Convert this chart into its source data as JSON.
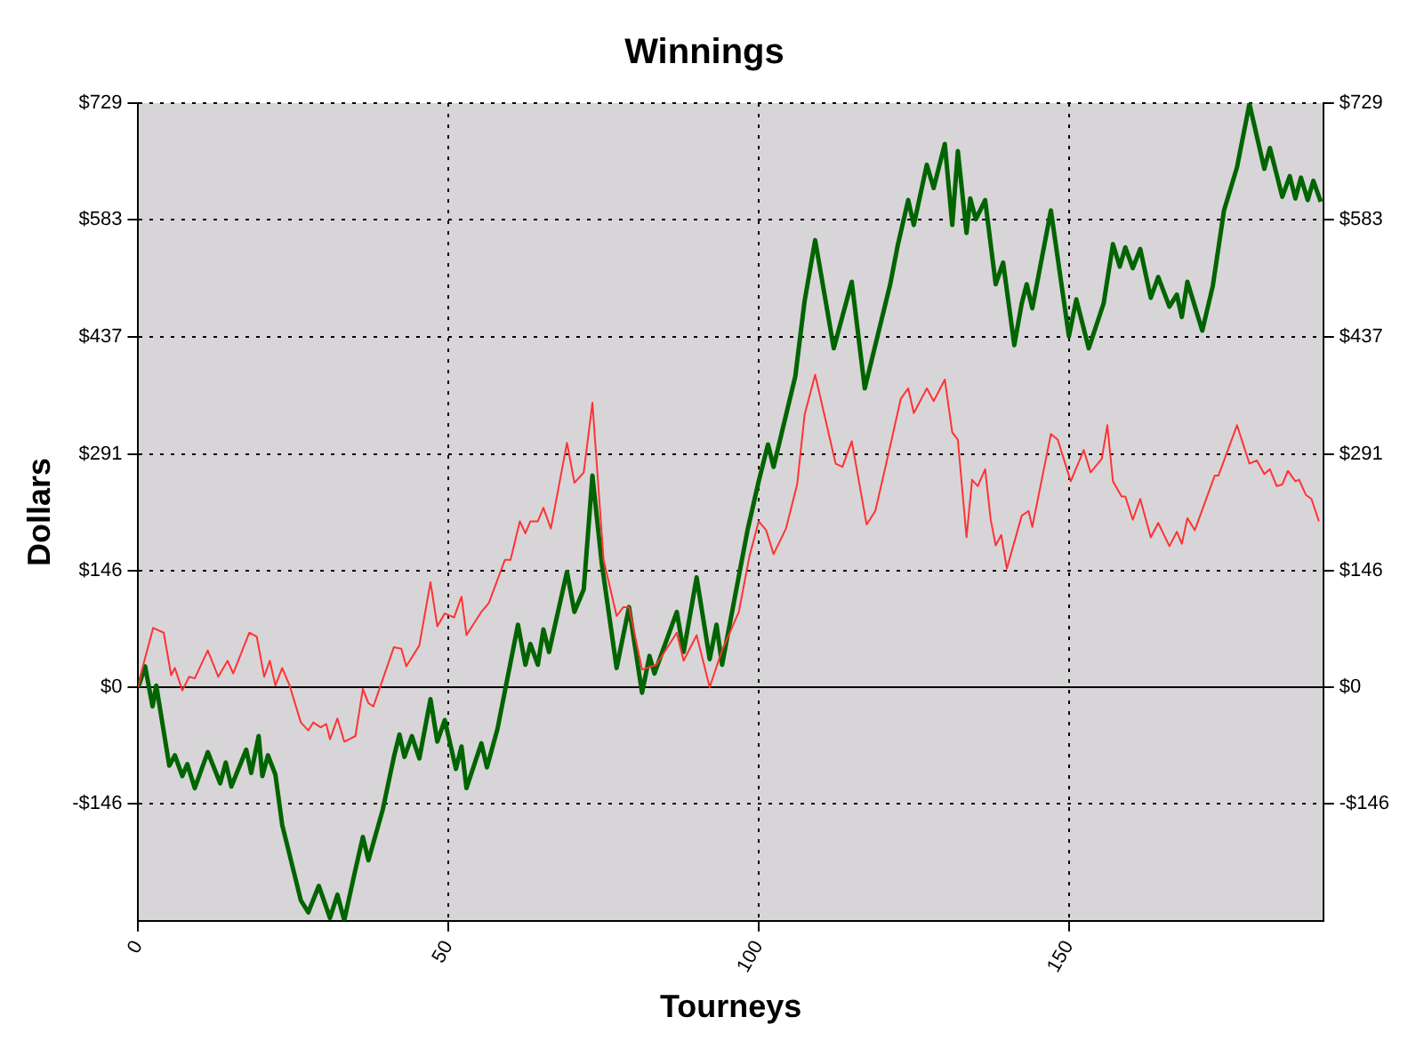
{
  "chart_data": {
    "type": "line",
    "title": "Winnings",
    "xlabel": "Tourneys",
    "ylabel": "Dollars",
    "xlim": [
      0,
      191
    ],
    "xticks": [
      0,
      50,
      100,
      150
    ],
    "ylim": [
      -291.6,
      729
    ],
    "yticks": [
      {
        "value": -145.8,
        "label": "-$146"
      },
      {
        "value": 0,
        "label": "$0"
      },
      {
        "value": 145.8,
        "label": "$146"
      },
      {
        "value": 291,
        "label": "$291"
      },
      {
        "value": 437.4,
        "label": "$437"
      },
      {
        "value": 583.2,
        "label": "$583"
      },
      {
        "value": 729,
        "label": "$729"
      }
    ],
    "y2lim": [
      -291.6,
      729
    ],
    "y2ticks": [
      {
        "value": -145.8,
        "label": "-$146"
      },
      {
        "value": 0,
        "label": "$0"
      },
      {
        "value": 145.8,
        "label": "$146"
      },
      {
        "value": 291,
        "label": "$291"
      },
      {
        "value": 437.4,
        "label": "$437"
      },
      {
        "value": 583.2,
        "label": "$583"
      },
      {
        "value": 729,
        "label": "$729"
      }
    ],
    "grid": true,
    "marker": "none",
    "line_style": "solid",
    "ref_lines": [
      {
        "axis": "y",
        "value": 0,
        "color": "#000000"
      }
    ],
    "series": [
      {
        "color": "#ff3333",
        "x": [
          0,
          0.6,
          2.4,
          4.1,
          5.3,
          5.9,
          7.1,
          8.2,
          9.1,
          11.2,
          12.9,
          14.4,
          15.3,
          17.9,
          19.1,
          20.3,
          21.2,
          22.1,
          23.2,
          24.4,
          26.2,
          27.4,
          28.2,
          29.4,
          30.3,
          30.9,
          32.1,
          33.2,
          35,
          36.2,
          37.1,
          37.9,
          41.2,
          42.4,
          43.2,
          45.3,
          47.1,
          48.2,
          49.4,
          50.9,
          52.1,
          52.9,
          55.3,
          56.5,
          59.1,
          60,
          61.5,
          62.4,
          63.2,
          64.4,
          65.3,
          66.5,
          69.1,
          70.3,
          71.8,
          73.2,
          75,
          77.1,
          78.2,
          79.1,
          81.2,
          83.5,
          86.8,
          87.9,
          90,
          92.1,
          94.1,
          96.8,
          98.5,
          100,
          101.2,
          102.4,
          104.4,
          106.2,
          107.4,
          109.1,
          112.4,
          113.5,
          115,
          117.4,
          118.8,
          121.2,
          122.9,
          124.1,
          125,
          127.1,
          128.2,
          130,
          131.2,
          132.1,
          133.5,
          134.4,
          135.3,
          136.5,
          137.4,
          138.2,
          139.1,
          140,
          142.4,
          143.5,
          144.1,
          147.1,
          148.2,
          150.3,
          152.4,
          153.5,
          155.3,
          156.2,
          157.1,
          158.5,
          159.1,
          160.3,
          161.5,
          163.2,
          164.4,
          166.2,
          167.4,
          168.2,
          169.1,
          170.3,
          173.5,
          174.1,
          177.1,
          179.1,
          180.3,
          181.5,
          182.4,
          183.5,
          184.4,
          185.3,
          186.5,
          187.1,
          188.2,
          189.1,
          190.3
        ],
        "values": [
          0,
          22,
          74,
          68,
          15,
          24,
          -4,
          13,
          11,
          46,
          13,
          33,
          17,
          68,
          63,
          13,
          33,
          2,
          24,
          2,
          -44,
          -54,
          -44,
          -50,
          -46,
          -65,
          -39,
          -68,
          -61,
          -2,
          -20,
          -24,
          50,
          48,
          26,
          52,
          131,
          76,
          92,
          87,
          113,
          65,
          94,
          105,
          159,
          159,
          207,
          192,
          207,
          207,
          224,
          198,
          305,
          255,
          268,
          355,
          159,
          89,
          100,
          100,
          22,
          28,
          68,
          33,
          65,
          0,
          46,
          94,
          163,
          207,
          196,
          166,
          198,
          253,
          340,
          390,
          279,
          275,
          307,
          203,
          220,
          301,
          360,
          373,
          342,
          373,
          357,
          384,
          318,
          309,
          187,
          259,
          251,
          272,
          209,
          177,
          190,
          148,
          214,
          220,
          200,
          316,
          309,
          257,
          296,
          268,
          285,
          327,
          257,
          238,
          238,
          209,
          235,
          187,
          205,
          176,
          194,
          179,
          211,
          196,
          264,
          264,
          327,
          279,
          283,
          266,
          272,
          251,
          253,
          270,
          257,
          259,
          240,
          235,
          207
        ]
      },
      {
        "color": "#006400",
        "x": [
          0,
          1.1,
          2.3,
          2.9,
          5,
          5.9,
          7.1,
          7.9,
          9.1,
          11.2,
          13.2,
          14.1,
          15,
          17.4,
          18.2,
          19.4,
          20,
          20.9,
          22.1,
          23.2,
          24.1,
          26.2,
          27.4,
          29.1,
          30.9,
          32.1,
          33.2,
          34.7,
          36.2,
          37.1,
          39.4,
          41.2,
          42.1,
          42.9,
          44.1,
          45.3,
          47.1,
          48.2,
          49.4,
          51.2,
          52.1,
          52.9,
          55.3,
          56.2,
          57.9,
          61.2,
          62.4,
          63.2,
          64.4,
          65.3,
          66.2,
          69.1,
          70.3,
          71.8,
          73.2,
          74.7,
          77.1,
          79.1,
          81.2,
          82.4,
          83.2,
          86.8,
          87.9,
          90,
          92.1,
          93.2,
          94.1,
          98.2,
          100,
          101.5,
          102.4,
          105.9,
          107.4,
          109.1,
          112.1,
          115,
          117.1,
          121.2,
          122.4,
          124.1,
          125,
          127.1,
          128.2,
          130,
          131.2,
          132.1,
          133.5,
          134.1,
          135,
          136.5,
          138.2,
          139.4,
          141.2,
          142.4,
          143.2,
          144.1,
          147.1,
          150,
          151.2,
          153.2,
          155.6,
          157.1,
          158.2,
          159.1,
          160.3,
          161.5,
          163.2,
          164.4,
          166.2,
          167.4,
          168.2,
          169.1,
          171.5,
          173.2,
          175,
          177.1,
          179.1,
          181.5,
          182.4,
          184.4,
          185.6,
          186.5,
          187.4,
          188.5,
          189.4,
          190.6
        ],
        "values": [
          0,
          26,
          -24,
          2,
          -98,
          -85,
          -111,
          -96,
          -126,
          -81,
          -120,
          -94,
          -124,
          -78,
          -107,
          -61,
          -111,
          -85,
          -109,
          -172,
          -200,
          -266,
          -281,
          -248,
          -288,
          -259,
          -291,
          -238,
          -187,
          -216,
          -153,
          -87,
          -59,
          -87,
          -61,
          -89,
          -15,
          -68,
          -41,
          -102,
          -74,
          -126,
          -70,
          -100,
          -52,
          78,
          28,
          54,
          28,
          72,
          44,
          144,
          94,
          122,
          264,
          155,
          24,
          100,
          -7,
          39,
          17,
          94,
          44,
          137,
          35,
          78,
          28,
          196,
          257,
          303,
          275,
          388,
          482,
          558,
          423,
          506,
          373,
          503,
          551,
          608,
          577,
          652,
          623,
          678,
          577,
          669,
          567,
          610,
          584,
          608,
          503,
          530,
          427,
          479,
          503,
          473,
          595,
          438,
          484,
          423,
          479,
          553,
          525,
          549,
          523,
          547,
          486,
          512,
          475,
          490,
          462,
          506,
          445,
          501,
          595,
          649,
          728,
          647,
          673,
          612,
          638,
          610,
          636,
          608,
          632,
          606
        ]
      }
    ]
  }
}
